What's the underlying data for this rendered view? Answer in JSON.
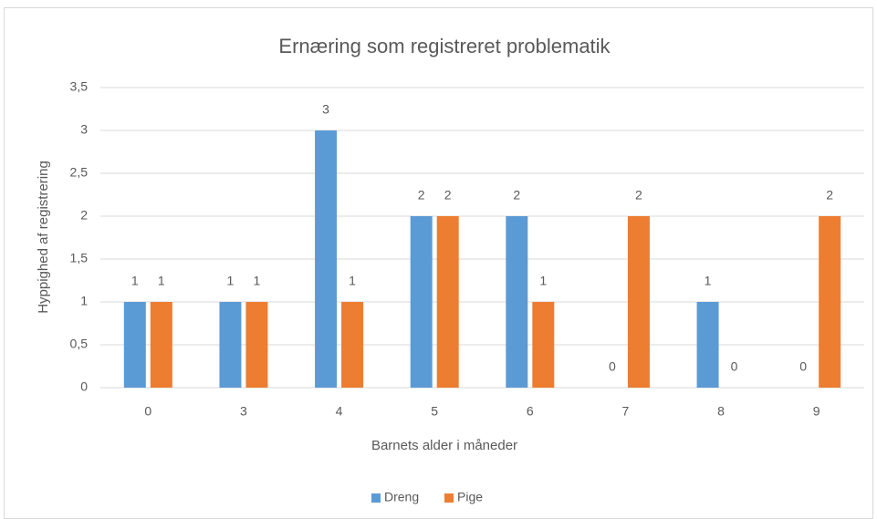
{
  "chart_data": {
    "type": "bar",
    "title": "Ernæring som registreret problematik",
    "x_label": "Barnets alder i måneder",
    "y_label": "Hyppighed af registrering",
    "categories": [
      "0",
      "3",
      "4",
      "5",
      "6",
      "7",
      "8",
      "9"
    ],
    "series": [
      {
        "name": "Dreng",
        "color": "#5b9bd5",
        "values": [
          1,
          1,
          3,
          2,
          2,
          0,
          1,
          0
        ]
      },
      {
        "name": "Pige",
        "color": "#ed7d31",
        "values": [
          1,
          1,
          1,
          2,
          1,
          2,
          0,
          2
        ]
      }
    ],
    "ylim": [
      0,
      3.5
    ],
    "yticks": [
      0,
      {
        "value": 0.5,
        "label": "0,5"
      },
      1,
      {
        "value": 1.5,
        "label": "1,5"
      },
      2,
      {
        "value": 2.5,
        "label": "2,5"
      },
      3,
      {
        "value": 3.5,
        "label": "3,5"
      }
    ],
    "grid": true,
    "legend": "bottom"
  }
}
